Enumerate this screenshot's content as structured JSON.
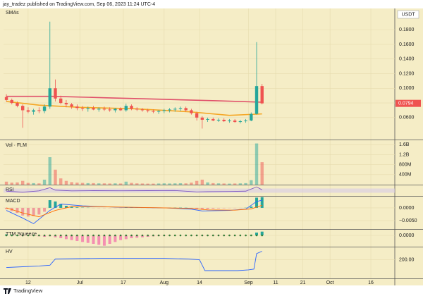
{
  "header": "jay_tradez published on TradingView.com, Sep 06, 2023 11:24 UTC-4",
  "footer": "TradingView",
  "chart_data": [
    {
      "type": "candlestick",
      "title": "SMAs",
      "currency": "USDT",
      "x": [
        3,
        5,
        7,
        9,
        11,
        13,
        15,
        17,
        19,
        21,
        23,
        25,
        27,
        29,
        31,
        33,
        35,
        37,
        39,
        41,
        43,
        45,
        47,
        49,
        51,
        53,
        55,
        57,
        59,
        61,
        63,
        65,
        67,
        69,
        71,
        73,
        75,
        77,
        79,
        81,
        83,
        85,
        87,
        89,
        91,
        93,
        95,
        97
      ],
      "open": [
        0.088,
        0.084,
        0.08,
        0.076,
        0.07,
        0.068,
        0.07,
        0.069,
        0.075,
        0.1,
        0.086,
        0.08,
        0.078,
        0.075,
        0.073,
        0.072,
        0.073,
        0.071,
        0.072,
        0.071,
        0.07,
        0.072,
        0.07,
        0.076,
        0.072,
        0.071,
        0.07,
        0.069,
        0.068,
        0.069,
        0.07,
        0.071,
        0.072,
        0.073,
        0.07,
        0.066,
        0.06,
        0.057,
        0.058,
        0.056,
        0.057,
        0.055,
        0.056,
        0.054,
        0.055,
        0.056,
        0.065,
        0.103
      ],
      "high": [
        0.092,
        0.086,
        0.082,
        0.078,
        0.074,
        0.072,
        0.074,
        0.078,
        0.191,
        0.112,
        0.09,
        0.084,
        0.08,
        0.078,
        0.076,
        0.075,
        0.076,
        0.074,
        0.075,
        0.074,
        0.073,
        0.074,
        0.079,
        0.078,
        0.074,
        0.073,
        0.072,
        0.071,
        0.07,
        0.072,
        0.073,
        0.074,
        0.075,
        0.075,
        0.072,
        0.068,
        0.062,
        0.06,
        0.06,
        0.059,
        0.059,
        0.058,
        0.058,
        0.057,
        0.058,
        0.067,
        0.163,
        0.106
      ],
      "low": [
        0.082,
        0.078,
        0.074,
        0.046,
        0.066,
        0.064,
        0.066,
        0.066,
        0.072,
        0.082,
        0.078,
        0.074,
        0.072,
        0.07,
        0.069,
        0.068,
        0.07,
        0.068,
        0.069,
        0.068,
        0.067,
        0.069,
        0.068,
        0.07,
        0.069,
        0.068,
        0.067,
        0.066,
        0.065,
        0.066,
        0.067,
        0.068,
        0.069,
        0.068,
        0.064,
        0.056,
        0.045,
        0.054,
        0.055,
        0.054,
        0.054,
        0.053,
        0.053,
        0.052,
        0.053,
        0.055,
        0.064,
        0.078
      ],
      "close": [
        0.084,
        0.08,
        0.076,
        0.07,
        0.068,
        0.07,
        0.069,
        0.075,
        0.1,
        0.086,
        0.08,
        0.078,
        0.075,
        0.073,
        0.072,
        0.073,
        0.071,
        0.072,
        0.071,
        0.07,
        0.072,
        0.07,
        0.076,
        0.072,
        0.071,
        0.07,
        0.069,
        0.068,
        0.069,
        0.07,
        0.071,
        0.072,
        0.073,
        0.07,
        0.066,
        0.06,
        0.057,
        0.058,
        0.056,
        0.057,
        0.055,
        0.056,
        0.054,
        0.055,
        0.056,
        0.065,
        0.103,
        0.0794
      ],
      "up_color": "#26a69a",
      "down_color": "#ef5350",
      "lines": [
        {
          "color": "#e0506a",
          "x": [
            3,
            20,
            40,
            60,
            80,
            97
          ],
          "values": [
            0.089,
            0.089,
            0.087,
            0.085,
            0.083,
            0.081
          ]
        },
        {
          "color": "#f5a623",
          "x": [
            3,
            15,
            30,
            50,
            70,
            85,
            97
          ],
          "values": [
            0.082,
            0.077,
            0.074,
            0.072,
            0.068,
            0.063,
            0.065
          ]
        }
      ],
      "last_price": 0.0794,
      "ylim": [
        0.03,
        0.209
      ],
      "yticks": [
        {
          "value": 0.06,
          "label": "0.0600"
        },
        {
          "value": 0.08,
          "label": "0.0800"
        },
        {
          "value": 0.1,
          "label": "0.1000"
        },
        {
          "value": 0.12,
          "label": "0.1200"
        },
        {
          "value": 0.14,
          "label": "0.1400"
        },
        {
          "value": 0.16,
          "label": "0.1600"
        },
        {
          "value": 0.18,
          "label": "0.1800"
        }
      ]
    },
    {
      "type": "bar",
      "title": "Vol · FLM",
      "values": [
        120000000.0,
        80000000.0,
        90000000.0,
        150000000.0,
        70000000.0,
        60000000.0,
        50000000.0,
        200000000.0,
        1100000000.0,
        600000000.0,
        250000000.0,
        150000000.0,
        100000000.0,
        80000000.0,
        70000000.0,
        60000000.0,
        60000000.0,
        50000000.0,
        50000000.0,
        45000000.0,
        50000000.0,
        45000000.0,
        120000000.0,
        70000000.0,
        50000000.0,
        45000000.0,
        40000000.0,
        40000000.0,
        45000000.0,
        50000000.0,
        45000000.0,
        50000000.0,
        55000000.0,
        50000000.0,
        80000000.0,
        150000000.0,
        200000000.0,
        90000000.0,
        60000000.0,
        50000000.0,
        45000000.0,
        40000000.0,
        45000000.0,
        50000000.0,
        60000000.0,
        180000000.0,
        1650000000.0,
        900000000.0
      ],
      "ylim": [
        0,
        1750000000.0
      ],
      "yticks": [
        {
          "value": 400000000.0,
          "label": "400M"
        },
        {
          "value": 800000000.0,
          "label": "800M"
        },
        {
          "value": 1200000000.0,
          "label": "1.2B"
        },
        {
          "value": 1600000000.0,
          "label": "1.6B"
        }
      ]
    },
    {
      "type": "line",
      "title": "RSI",
      "lines": [
        {
          "color": "#7e57c2",
          "x": [
            3,
            9,
            15,
            19,
            21,
            27,
            35,
            45,
            55,
            65,
            73,
            77,
            85,
            91,
            95,
            97
          ],
          "values": [
            45,
            35,
            48,
            78,
            55,
            48,
            50,
            49,
            50,
            51,
            38,
            40,
            42,
            45,
            85,
            58
          ]
        }
      ],
      "ylim": [
        0,
        100
      ]
    },
    {
      "type": "macd",
      "title": "MACD",
      "histogram": [
        -0.0005,
        -0.0012,
        -0.002,
        -0.003,
        -0.0034,
        -0.0032,
        -0.0026,
        -0.0015,
        0.003,
        0.0025,
        0.0015,
        0.0008,
        0.0004,
        0.0002,
        0.0001,
        5e-05,
        -5e-05,
        -0.0001,
        -0.0001,
        -0.0001,
        -5e-05,
        -5e-05,
        0.0003,
        0.0002,
        0.0001,
        5e-05,
        -5e-05,
        -0.0001,
        -0.0001,
        -5e-05,
        5e-05,
        0.0001,
        0.0001,
        5e-05,
        -0.0002,
        -0.0005,
        -0.0007,
        -0.0005,
        -0.0003,
        -0.0002,
        -0.00015,
        -0.0001,
        -0.0001,
        -5e-05,
        5e-05,
        0.0005,
        0.004,
        0.0042
      ],
      "up_color": "#26a69a",
      "down_color": "#ef9a9a",
      "lines": [
        {
          "color": "#2962ff",
          "x": [
            3,
            9,
            13,
            19,
            23,
            31,
            45,
            61,
            71,
            75,
            85,
            91,
            95,
            97
          ],
          "values": [
            -0.001,
            -0.004,
            -0.0062,
            -0.001,
            0.0015,
            0.0008,
            0.0002,
            0,
            -0.0005,
            -0.0012,
            -0.001,
            -0.0005,
            0.0025,
            0.003
          ]
        },
        {
          "color": "#ff6d00",
          "x": [
            3,
            9,
            15,
            21,
            27,
            35,
            55,
            71,
            77,
            87,
            93,
            97
          ],
          "values": [
            0,
            -0.002,
            -0.0035,
            -0.001,
            0.0005,
            0.0005,
            0.0001,
            -0.0002,
            -0.0008,
            -0.0009,
            -0.0004,
            0.001
          ]
        }
      ],
      "ylim": [
        -0.0083,
        0.0044
      ],
      "yticks": [
        {
          "value": 0,
          "label": "0.0000"
        },
        {
          "value": -0.005,
          "label": "−0.0050"
        }
      ]
    },
    {
      "type": "squeeze",
      "title": "TTM Squeeze",
      "histogram": [
        0.001,
        0.0005,
        0,
        -0.0005,
        -0.0005,
        -0.0005,
        -0.001,
        -0.0015,
        -0.001,
        -0.002,
        -0.003,
        -0.004,
        -0.005,
        -0.006,
        -0.007,
        -0.008,
        -0.009,
        -0.01,
        -0.011,
        -0.009,
        -0.007,
        -0.005,
        -0.004,
        -0.003,
        -0.0025,
        -0.002,
        -0.0015,
        -0.001,
        -0.0008,
        -0.0006,
        -0.0004,
        -0.0003,
        -0.0002,
        -0.0002,
        -0.0003,
        -0.0005,
        -0.0006,
        -0.0005,
        -0.0005,
        -0.0004,
        -0.0004,
        -0.0003,
        -0.0003,
        -0.0002,
        -0.0001,
        0.0005,
        0.003,
        0.004
      ],
      "up_color": "#26a69a",
      "down_color": "#f48fb1",
      "ylim": [
        -0.012,
        0.006
      ],
      "yticks": [
        {
          "value": 0,
          "label": "0.0000"
        }
      ]
    },
    {
      "type": "line",
      "title": "HV",
      "lines": [
        {
          "color": "#2962ff",
          "x": [
            3,
            9,
            15,
            19,
            21,
            40,
            60,
            70,
            74,
            76,
            88,
            92,
            94,
            95,
            97
          ],
          "values": [
            150,
            155,
            160,
            165,
            205,
            210,
            210,
            205,
            200,
            130,
            130,
            135,
            140,
            240,
            255
          ]
        }
      ],
      "ylim": [
        80,
        280
      ],
      "yticks": [
        {
          "value": 200,
          "label": "200.00"
        }
      ],
      "xlim": [
        1.95,
        145.8
      ],
      "xticks": [
        {
          "value": 11,
          "label": "12"
        },
        {
          "value": 30,
          "label": "Jul"
        },
        {
          "value": 46,
          "label": "17"
        },
        {
          "value": 61,
          "label": "Aug"
        },
        {
          "value": 74,
          "label": "14"
        },
        {
          "value": 92,
          "label": "Sep"
        },
        {
          "value": 102,
          "label": "11"
        },
        {
          "value": 112,
          "label": "21"
        },
        {
          "value": 122,
          "label": "Oct"
        },
        {
          "value": 137,
          "label": "16"
        }
      ]
    }
  ]
}
